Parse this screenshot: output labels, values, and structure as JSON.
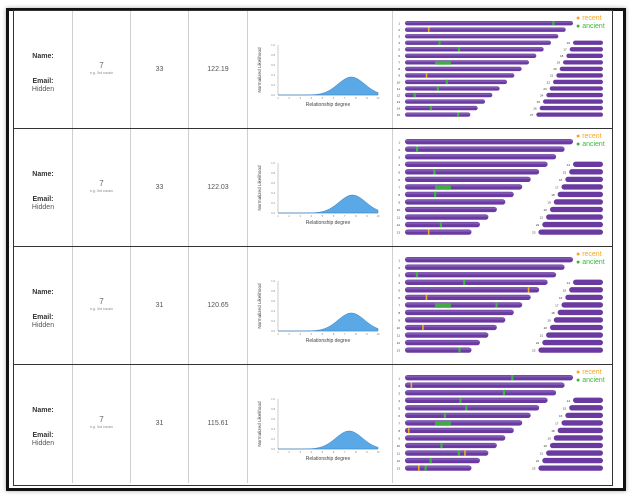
{
  "labels": {
    "name": "Name:",
    "email": "Email:",
    "hidden": "Hidden",
    "gen_sub": "e.g. 3rd cousin",
    "ylabel": "Normalized Likelihood",
    "xlabel": "Relationship degree",
    "recent": "recent",
    "ancient": "ancient"
  },
  "colors": {
    "purple": "#6a3aa0",
    "recent": "#f5a623",
    "ancient": "#3cb63c",
    "curve": "#5aa9e6"
  },
  "rows": [
    {
      "gen": "7",
      "cm": "33",
      "seg": "122.19",
      "curve_peak": 7.6,
      "curve_width": 1.2,
      "chrom_count": 15
    },
    {
      "gen": "7",
      "cm": "33",
      "seg": "122.03",
      "curve_peak": 7.7,
      "curve_width": 1.2,
      "chrom_count": 13
    },
    {
      "gen": "7",
      "cm": "31",
      "seg": "120.65",
      "curve_peak": 7.6,
      "curve_width": 1.2,
      "chrom_count": 13
    },
    {
      "gen": "7",
      "cm": "31",
      "seg": "115.61",
      "curve_peak": 7.4,
      "curve_width": 1.2,
      "chrom_count": 13
    }
  ],
  "chart_data": {
    "type": "area",
    "xlabel": "Relationship degree",
    "ylabel": "Normalized Likelihood",
    "xticks": [
      "1",
      "2",
      "3",
      "4",
      "5",
      "6",
      "7",
      "8",
      "9",
      "10"
    ],
    "yticks": [
      "0.0",
      "0.2",
      "0.4",
      "0.6",
      "0.8",
      "1.0"
    ],
    "xlim": [
      1,
      10
    ],
    "ylim": [
      0,
      1
    ]
  }
}
